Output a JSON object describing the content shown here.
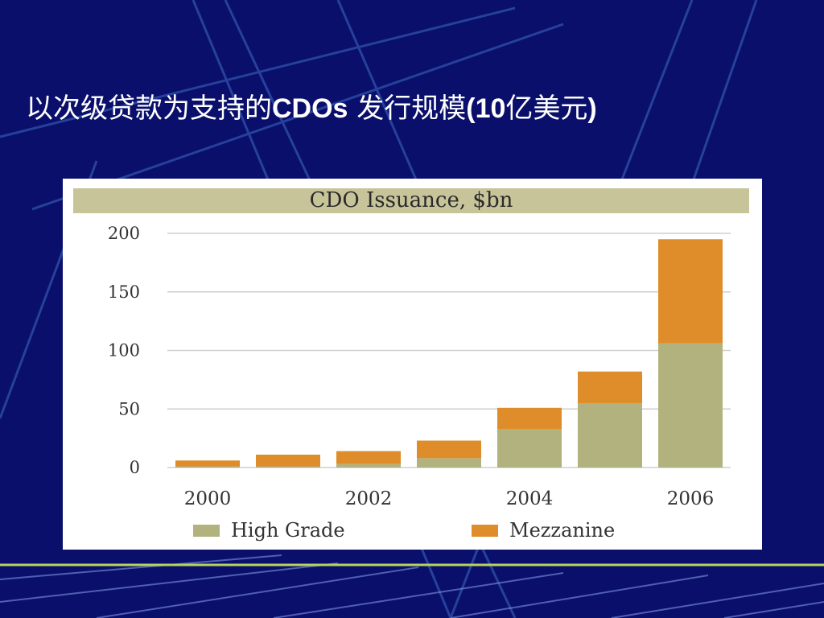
{
  "slide": {
    "title_part1": "以次级贷款为支持的",
    "title_part2": "CDOs",
    "title_part3": " 发行规模",
    "title_part4": "(10",
    "title_part5": "亿美元",
    "title_part6": ")",
    "background_color": "#0a0f6b"
  },
  "chart_data": {
    "type": "bar",
    "stacked": true,
    "title": "CDO Issuance, $bn",
    "categories": [
      "2000",
      "2001",
      "2002",
      "2003",
      "2004",
      "2005",
      "2006"
    ],
    "x_tick_labels": [
      "2000",
      "",
      "2002",
      "",
      "2004",
      "",
      "2006"
    ],
    "series": [
      {
        "name": "High Grade",
        "color": "#b1b27d",
        "values": [
          1,
          1,
          3,
          8,
          33,
          55,
          106
        ]
      },
      {
        "name": "Mezzanine",
        "color": "#df8d2a",
        "values": [
          5,
          10,
          11,
          15,
          18,
          27,
          89
        ]
      }
    ],
    "ylim": [
      0,
      200
    ],
    "yticks": [
      0,
      50,
      100,
      150,
      200
    ],
    "grid": true,
    "legend_position": "bottom"
  }
}
